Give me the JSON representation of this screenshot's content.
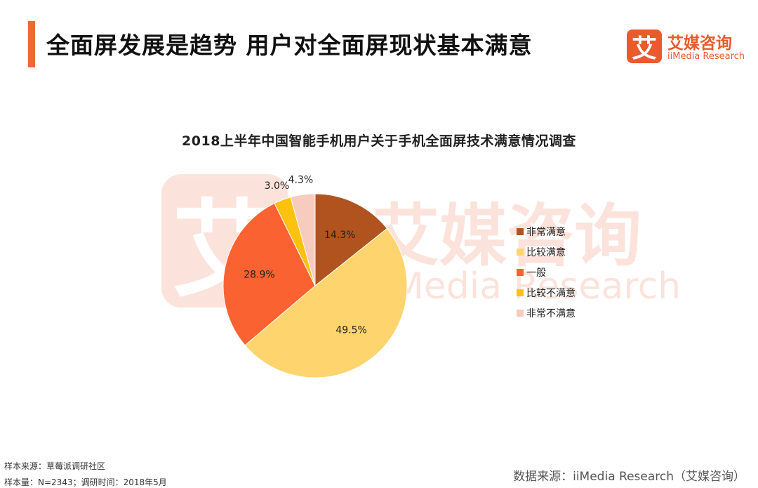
{
  "header": {
    "title": "全面屏发展是趋势 用户对全面屏现状基本满意",
    "accent_color": "#ec6a33"
  },
  "logo": {
    "mark": "艾",
    "name_cn": "艾媒咨询",
    "name_en": "iiMedia Research",
    "color": "#e95a2d"
  },
  "watermark": {
    "mark": "艾",
    "name_cn": "艾媒咨询",
    "name_en": "iiMedia Research"
  },
  "chart_data": {
    "type": "pie",
    "title": "2018上半年中国智能手机用户关于手机全面屏技术满意情况调查",
    "start_angle_deg": 0,
    "direction": "clockwise",
    "legend_position": "right",
    "slices": [
      {
        "label": "非常满意",
        "value": 14.3,
        "display": "14.3%",
        "color": "#b0531e"
      },
      {
        "label": "比较满意",
        "value": 49.5,
        "display": "49.5%",
        "color": "#fdd46e"
      },
      {
        "label": "一般",
        "value": 28.9,
        "display": "28.9%",
        "color": "#fb6232"
      },
      {
        "label": "比较不满意",
        "value": 3.0,
        "display": "3.0%",
        "color": "#fec10f"
      },
      {
        "label": "非常不满意",
        "value": 4.3,
        "display": "4.3%",
        "color": "#f7cbbe"
      }
    ]
  },
  "footer": {
    "sample_source": "样本来源：草莓派调研社区",
    "sample_info": "样本量：N=2343；调研时间：2018年5月",
    "data_source": "数据来源：iiMedia Research（艾媒咨询）"
  }
}
